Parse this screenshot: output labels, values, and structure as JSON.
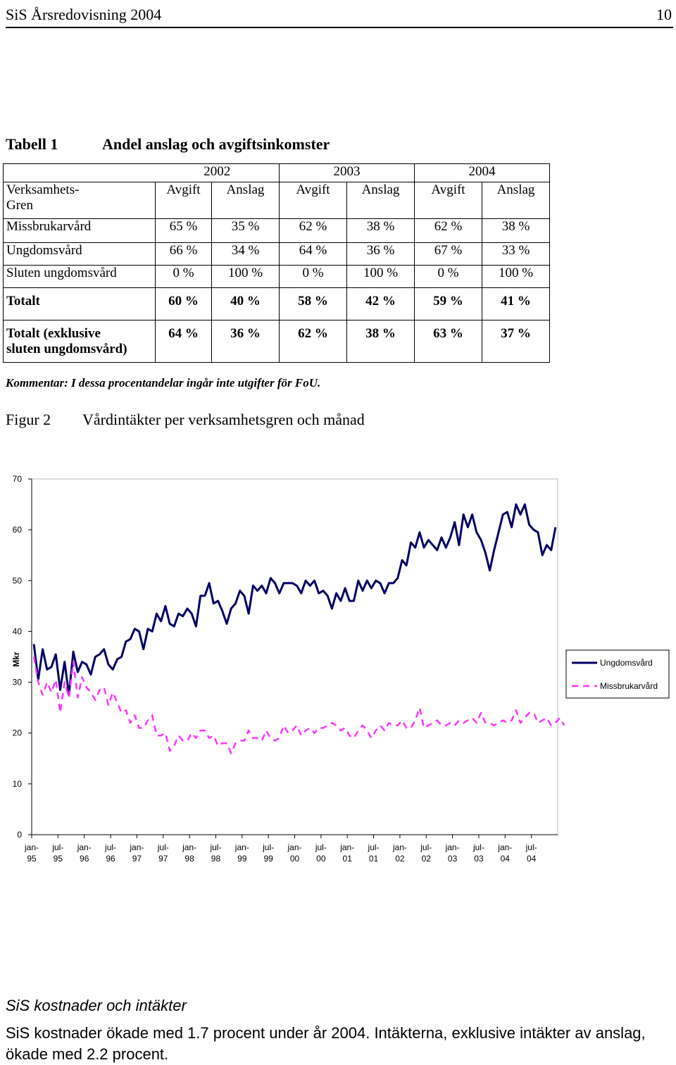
{
  "header": {
    "title": "SiS Årsredovisning 2004",
    "page_number": "10"
  },
  "table1": {
    "label": "Tabell 1",
    "title": "Andel anslag och avgiftsinkomster",
    "years": [
      "2002",
      "2003",
      "2004"
    ],
    "subheader": {
      "first": "Verksamhets-\nGren",
      "cols": [
        "Avgift",
        "Anslag",
        "Avgift",
        "Anslag",
        "Avgift",
        "Anslag"
      ]
    },
    "rows": [
      {
        "label": "Missbrukarvård",
        "cells": [
          "65 %",
          "35 %",
          "62 %",
          "38 %",
          "62 %",
          "38 %"
        ]
      },
      {
        "label": "Ungdomsvård",
        "cells": [
          "66 %",
          "34 %",
          "64 %",
          "36 %",
          "67 %",
          "33 %"
        ]
      },
      {
        "label": "Sluten ungdomsvård",
        "cells": [
          "0 %",
          "100 %",
          "0 %",
          "100 %",
          "0 %",
          "100 %"
        ]
      }
    ],
    "total_row": {
      "label": "Totalt",
      "cells": [
        "60 %",
        "40 %",
        "58 %",
        "42  %",
        "59 %",
        "41 %"
      ]
    },
    "total_excl_row": {
      "label": "Totalt (exklusive\nsluten ungdomsvård)",
      "cells": [
        "64 %",
        "36 %",
        "62 %",
        "38  %",
        "63 %",
        "37 %"
      ]
    },
    "comment": "Kommentar: I dessa procentandelar ingår inte utgifter för FoU."
  },
  "figure2": {
    "label": "Figur 2",
    "title": "Vårdintäkter per verksamhetsgren och månad"
  },
  "chart_data": {
    "type": "line",
    "ylabel": "Mkr",
    "ylim": [
      0,
      70
    ],
    "yticks": [
      0,
      10,
      20,
      30,
      40,
      50,
      60,
      70
    ],
    "grid": false,
    "legend_position": "right",
    "x_tick_labels": [
      "jan-\n95",
      "jul-\n95",
      "jan-\n96",
      "jul-\n96",
      "jan-\n97",
      "jul-\n97",
      "jan-\n98",
      "jul-\n98",
      "jan-\n99",
      "jul-\n99",
      "jan-\n00",
      "jul-\n00",
      "jan-\n01",
      "jul-\n01",
      "jan-\n02",
      "jul-\n02",
      "jan-\n03",
      "jul-\n03",
      "jan-\n04",
      "jul-\n04"
    ],
    "x_range_months": "jan-95 .. dec-04",
    "series": [
      {
        "name": "Ungdomsvård",
        "color": "#000066",
        "style": "solid",
        "values": [
          37.5,
          30.5,
          36.5,
          32.5,
          33,
          35.5,
          28.5,
          34,
          27.5,
          36,
          32,
          34,
          33.5,
          31.5,
          35,
          35.5,
          36.5,
          33.5,
          32.5,
          34.5,
          35,
          38,
          38.5,
          40.5,
          40,
          36.5,
          40.5,
          40,
          43.5,
          42,
          45,
          41.5,
          41,
          43.5,
          43,
          44.5,
          43.5,
          41,
          47,
          47,
          49.5,
          45.5,
          46,
          44,
          41.5,
          44.5,
          45.5,
          48,
          47,
          43.5,
          49,
          48,
          49,
          47.5,
          50.5,
          49.5,
          47.5,
          49.5,
          49.5,
          49.5,
          49,
          47.5,
          50,
          49,
          50,
          47.5,
          48,
          47,
          44.5,
          47.5,
          46,
          48.5,
          46,
          46,
          50,
          48,
          50,
          48.5,
          50,
          49.5,
          47.5,
          49.5,
          49.5,
          50.5,
          54,
          53,
          57.5,
          56.5,
          59.5,
          56.5,
          58,
          57,
          56,
          58.5,
          56.5,
          58.5,
          61.5,
          57,
          63,
          60.5,
          63,
          59.5,
          58,
          55.5,
          52,
          56,
          59.5,
          63,
          63.5,
          60.5,
          65,
          63,
          65,
          61,
          60,
          59.5,
          55,
          57,
          56,
          60.5
        ]
      },
      {
        "name": "Missbrukarvård",
        "color": "#ff33ff",
        "style": "dashed",
        "values": [
          35,
          30,
          27.5,
          30,
          28,
          30.5,
          24,
          30,
          27,
          34,
          27,
          31,
          29,
          28,
          26.5,
          28.5,
          29,
          25.5,
          28,
          26,
          24,
          24.5,
          22,
          23.5,
          21,
          21,
          22.5,
          23.5,
          19.5,
          19.5,
          20,
          16.5,
          17.5,
          19.5,
          18.5,
          18.5,
          20,
          19,
          20.5,
          20.5,
          19,
          19.5,
          17.5,
          18,
          18,
          16,
          18,
          18.5,
          18.5,
          20.5,
          19,
          19,
          18.5,
          20.5,
          19,
          18.5,
          19,
          21.5,
          20,
          20.5,
          21.5,
          19.5,
          20.5,
          21,
          20,
          21,
          21,
          21.5,
          22,
          21.5,
          20.5,
          21,
          19.5,
          19,
          20.5,
          21.5,
          20.5,
          19,
          20.5,
          21.5,
          20.5,
          22,
          21.5,
          21.5,
          22.5,
          21,
          21,
          22.5,
          25,
          21,
          21.5,
          22,
          22.5,
          21.5,
          21.5,
          22,
          21.5,
          22.5,
          22,
          22.5,
          23,
          22,
          24,
          22,
          22,
          21.5,
          22,
          22.5,
          22,
          22.5,
          24.5,
          22,
          23,
          24,
          24,
          22,
          22.5,
          23,
          21.5,
          22,
          23,
          21.5
        ]
      }
    ]
  },
  "section": {
    "title": "SiS kostnader och intäkter",
    "body": "SiS kostnader ökade med 1.7 procent under år 2004. Intäkterna, exklusive intäkter av anslag, ökade med 2.2 procent."
  }
}
